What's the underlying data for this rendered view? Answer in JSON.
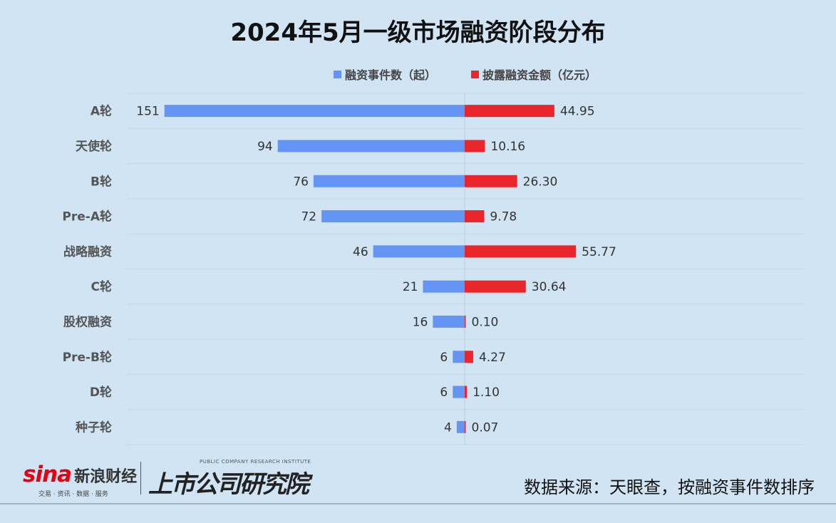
{
  "chart_data": {
    "type": "bar",
    "title": "2024年5月一级市场融资阶段分布",
    "categories": [
      "A轮",
      "天使轮",
      "B轮",
      "Pre-A轮",
      "战略融资",
      "C轮",
      "股权融资",
      "Pre-B轮",
      "D轮",
      "种子轮"
    ],
    "series": [
      {
        "name": "融资事件数（起）",
        "color": "#6495f5",
        "values": [
          151,
          94,
          76,
          72,
          46,
          21,
          16,
          6,
          6,
          4
        ],
        "labels": [
          "151",
          "94",
          "76",
          "72",
          "46",
          "21",
          "16",
          "6",
          "6",
          "4"
        ]
      },
      {
        "name": "披露融资金额（亿元）",
        "color": "#e8262c",
        "values": [
          44.95,
          10.16,
          26.3,
          9.78,
          55.77,
          30.64,
          0.1,
          4.27,
          1.1,
          0.07
        ],
        "labels": [
          "44.95",
          "10.16",
          "26.30",
          "9.78",
          "55.77",
          "30.64",
          "0.10",
          "4.27",
          "1.10",
          "0.07"
        ]
      }
    ],
    "legend": "top-center",
    "grid": true
  },
  "source": "数据来源：天眼查，按融资事件数排序",
  "logos": {
    "sina_word": "sina",
    "sina_cn": "新浪财经",
    "sina_sub": "交易 · 资讯 · 数据 · 服务",
    "inst_en": "PUBLIC COMPANY RESEARCH INSTITUTE",
    "inst_cn": "上市公司研究院"
  }
}
